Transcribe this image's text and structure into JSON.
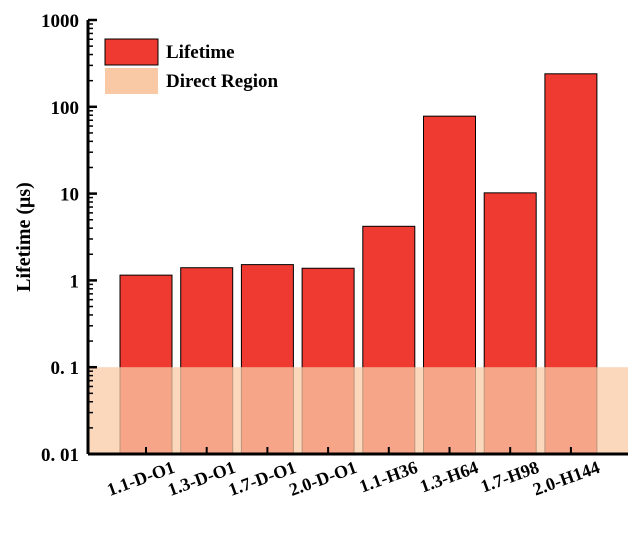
{
  "chart_data": {
    "type": "bar",
    "ylabel": "Lifetime (μs)",
    "yscale": "log",
    "ylim": [
      0.01,
      1000
    ],
    "yticks": [
      {
        "value": 0.01,
        "label": "0. 01"
      },
      {
        "value": 0.1,
        "label": "0. 1"
      },
      {
        "value": 1,
        "label": "1"
      },
      {
        "value": 10,
        "label": "10"
      },
      {
        "value": 100,
        "label": "100"
      },
      {
        "value": 1000,
        "label": "1000"
      }
    ],
    "categories": [
      "1.1-D-O1",
      "1.3-D-O1",
      "1.7-D-O1",
      "2.0-D-O1",
      "1.1-H36",
      "1.3-H64",
      "1.7-H98",
      "2.0-H144"
    ],
    "series": [
      {
        "name": "Lifetime",
        "color": "#ee3a30",
        "values": [
          1.15,
          1.4,
          1.52,
          1.38,
          4.2,
          78,
          10.2,
          240
        ]
      }
    ],
    "region": {
      "name": "Direct Region",
      "from": 0.01,
      "to": 0.1,
      "color": "#f9c9a6"
    },
    "legend": {
      "placement": "top-left",
      "entries": [
        "Lifetime",
        "Direct Region"
      ]
    }
  }
}
